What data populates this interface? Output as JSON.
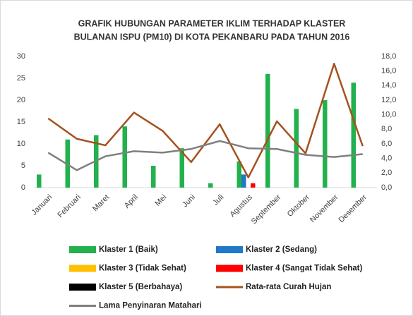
{
  "chart_data": {
    "type": "bar",
    "title": [
      "GRAFIK HUBUNGAN PARAMETER IKLIM TERHADAP KLASTER",
      "BULANAN ISPU (PM10) DI KOTA PEKANBARU PADA TAHUN 2016"
    ],
    "categories": [
      "Januari",
      "Februari",
      "Maret",
      "April",
      "Mei",
      "Juni",
      "Juli",
      "Agustus",
      "September",
      "Oktober",
      "November",
      "Desember"
    ],
    "series": [
      {
        "name": "Klaster 1 (Baik)",
        "color": "#22b14c",
        "type": "bar",
        "values": [
          3,
          11,
          12,
          14,
          5,
          9,
          1,
          6,
          26,
          18,
          20,
          24
        ]
      },
      {
        "name": "Klaster 2 (Sedang)",
        "color": "#1f78c8",
        "type": "bar",
        "values": [
          0,
          0,
          0,
          0,
          0,
          0,
          0,
          3,
          0,
          0,
          0,
          0
        ]
      },
      {
        "name": "Klaster 3 (Tidak Sehat)",
        "color": "#ffc000",
        "type": "bar",
        "values": [
          0,
          0,
          0,
          0,
          0,
          0,
          0,
          0,
          0,
          0,
          0,
          0
        ]
      },
      {
        "name": "Klaster 4 (Sangat Tidak Sehat)",
        "color": "#ff0000",
        "type": "bar",
        "values": [
          0,
          0,
          0,
          0,
          0,
          0,
          0,
          1,
          0,
          0,
          0,
          0
        ]
      },
      {
        "name": "Klaster 5 (Berbahaya)",
        "color": "#000000",
        "type": "bar",
        "values": [
          0,
          0,
          0,
          0,
          0,
          0,
          0,
          0,
          0,
          0,
          0,
          0
        ]
      },
      {
        "name": "Rata-rata Curah Hujan",
        "color": "#a5511e",
        "type": "line",
        "axis": "y2",
        "values": [
          9.5,
          6.7,
          5.8,
          10.3,
          7.8,
          3.5,
          8.7,
          1.4,
          9.1,
          4.7,
          17.0,
          5.7
        ]
      },
      {
        "name": "Lama Penyinaran Matahari",
        "color": "#7f7f7f",
        "type": "line",
        "axis": "y2",
        "values": [
          4.8,
          2.4,
          4.3,
          5.0,
          4.8,
          5.3,
          6.4,
          5.4,
          5.3,
          4.5,
          4.2,
          4.6
        ]
      }
    ],
    "ylim": [
      0,
      30
    ],
    "yticks": [
      0,
      5,
      10,
      15,
      20,
      25,
      30
    ],
    "y2lim": [
      0,
      18
    ],
    "y2ticks": [
      {
        "value": 0,
        "label": "0,0"
      },
      {
        "value": 2,
        "label": "2,0"
      },
      {
        "value": 4,
        "label": "4,0"
      },
      {
        "value": 6,
        "label": "6,0"
      },
      {
        "value": 8,
        "label": "8,0"
      },
      {
        "value": 10,
        "label": "10,0"
      },
      {
        "value": 12,
        "label": "12,0"
      },
      {
        "value": 14,
        "label": "14,0"
      },
      {
        "value": 16,
        "label": "16,0"
      },
      {
        "value": 18,
        "label": "18,0"
      }
    ],
    "grid": false
  }
}
